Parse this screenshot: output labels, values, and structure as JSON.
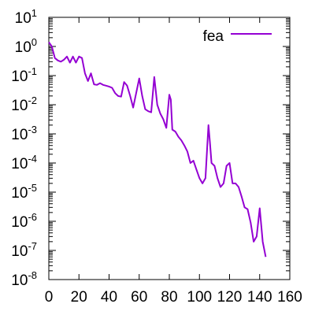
{
  "chart_data": {
    "type": "line",
    "title": "",
    "xlabel": "",
    "ylabel": "",
    "xlim": [
      0,
      160
    ],
    "ylim": [
      1e-08,
      10
    ],
    "yscale": "log",
    "grid": false,
    "legend_position": "top-right",
    "x_ticks": [
      {
        "value": 0,
        "label": "0"
      },
      {
        "value": 20,
        "label": "20"
      },
      {
        "value": 40,
        "label": "40"
      },
      {
        "value": 60,
        "label": "60"
      },
      {
        "value": 80,
        "label": "80"
      },
      {
        "value": 100,
        "label": "100"
      },
      {
        "value": 120,
        "label": "120"
      },
      {
        "value": 140,
        "label": "140"
      },
      {
        "value": 160,
        "label": "160"
      }
    ],
    "y_ticks": [
      {
        "value": 10,
        "base": "10",
        "exp": "1"
      },
      {
        "value": 1,
        "base": "10",
        "exp": "0"
      },
      {
        "value": 0.1,
        "base": "10",
        "exp": "-1"
      },
      {
        "value": 0.01,
        "base": "10",
        "exp": "-2"
      },
      {
        "value": 0.001,
        "base": "10",
        "exp": "-3"
      },
      {
        "value": 0.0001,
        "base": "10",
        "exp": "-4"
      },
      {
        "value": 1e-05,
        "base": "10",
        "exp": "-5"
      },
      {
        "value": 1e-06,
        "base": "10",
        "exp": "-6"
      },
      {
        "value": 1e-07,
        "base": "10",
        "exp": "-7"
      },
      {
        "value": 1e-08,
        "base": "10",
        "exp": "-8"
      }
    ],
    "series": [
      {
        "name": "fea",
        "color": "#9400d3",
        "x": [
          0,
          2,
          4,
          6,
          8,
          10,
          12,
          14,
          16,
          18,
          20,
          22,
          24,
          26,
          28,
          30,
          32,
          34,
          36,
          38,
          40,
          42,
          44,
          46,
          48,
          50,
          52,
          54,
          56,
          58,
          60,
          62,
          64,
          66,
          68,
          70,
          72,
          74,
          76,
          78,
          80,
          81,
          82,
          84,
          86,
          88,
          90,
          92,
          94,
          96,
          98,
          100,
          102,
          104,
          106,
          107,
          108,
          110,
          112,
          114,
          116,
          118,
          120,
          122,
          124,
          126,
          128,
          130,
          132,
          134,
          136,
          138,
          140,
          142,
          144
        ],
        "y": [
          1.4,
          1.0,
          0.4,
          0.33,
          0.3,
          0.35,
          0.45,
          0.28,
          0.45,
          0.28,
          0.45,
          0.4,
          0.12,
          0.065,
          0.12,
          0.05,
          0.048,
          0.055,
          0.048,
          0.045,
          0.042,
          0.038,
          0.025,
          0.02,
          0.019,
          0.06,
          0.045,
          0.02,
          0.008,
          0.025,
          0.08,
          0.02,
          0.007,
          0.006,
          0.0055,
          0.09,
          0.01,
          0.005,
          0.0032,
          0.0016,
          0.022,
          0.015,
          0.0014,
          0.0012,
          0.0008,
          0.0006,
          0.0004,
          0.00025,
          0.0001,
          0.00012,
          6e-05,
          3e-05,
          2e-05,
          3e-05,
          0.002,
          0.0005,
          0.0001,
          8e-05,
          3e-05,
          1.5e-05,
          2e-05,
          8e-05,
          0.0001,
          2e-05,
          2e-05,
          1.5e-05,
          7e-06,
          3e-06,
          2.6e-06,
          9e-07,
          2e-07,
          3e-07,
          2.8e-06,
          2e-07,
          6e-08
        ]
      }
    ]
  }
}
